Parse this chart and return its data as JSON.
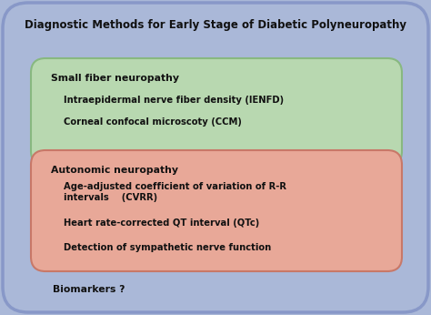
{
  "title": "Diagnostic Methods for Early Stage of Diabetic Polyneuropathy",
  "background_color": "#aab8d8",
  "green_box_color": "#b8d8b0",
  "green_box_edge": "#88b880",
  "red_box_color": "#e8a898",
  "red_box_edge": "#c87868",
  "outer_edge_color": "#8898c8",
  "title_fontsize": 8.5,
  "title_color": "#111111",
  "green_header": "Small fiber neuropathy",
  "green_items": [
    "Intraepidermal nerve fiber density (IENFD)",
    "Corneal confocal microscoty (CCM)"
  ],
  "red_header": "Autonomic neuropathy",
  "red_items": [
    "Age-adjusted coefficient of variation of R-R\nintervals    (CVRR)",
    "Heart rate-corrected QT interval (QTc)",
    "Detection of sympathetic nerve function"
  ],
  "biomarkers_text": "Biomarkers ?",
  "header_fontsize": 7.8,
  "item_fontsize": 7.2,
  "biomarkers_fontsize": 7.8
}
